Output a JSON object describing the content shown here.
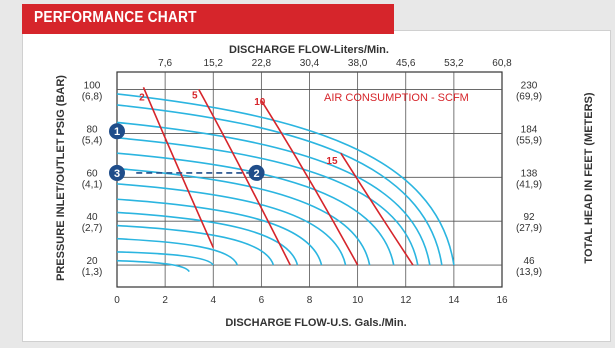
{
  "header": {
    "title": "PERFORMANCE CHART"
  },
  "chart_data": {
    "type": "line",
    "title": "PERFORMANCE CHART",
    "xlabel": "DISCHARGE FLOW-U.S. Gals./Min.",
    "x2label": "DISCHARGE FLOW-Liters/Min.",
    "ylabel": "PRESSURE INLET/OUTLET PSIG (BAR)",
    "y2label": "TOTAL HEAD IN FEET (METERS)",
    "annotation": "AIR CONSUMPTION - SCFM",
    "xlim": [
      0,
      16
    ],
    "ylim": [
      10,
      108
    ],
    "x_ticks": [
      "0",
      "2",
      "4",
      "6",
      "8",
      "10",
      "12",
      "14",
      "16"
    ],
    "x_tick_values": [
      0,
      2,
      4,
      6,
      8,
      10,
      12,
      14,
      16
    ],
    "x2_ticks": [
      "7,6",
      "15,2",
      "22,8",
      "30,4",
      "38,0",
      "45,6",
      "53,2",
      "60,8"
    ],
    "x2_tick_values": [
      2,
      4,
      6,
      8,
      10,
      12,
      14,
      16
    ],
    "y_ticks": [
      {
        "value": 100,
        "psi": "100",
        "bar": "(6,8)",
        "head": "230",
        "meters": "(69,9)"
      },
      {
        "value": 80,
        "psi": "80",
        "bar": "(5,4)",
        "head": "184",
        "meters": "(55,9)"
      },
      {
        "value": 60,
        "psi": "60",
        "bar": "(4,1)",
        "head": "138",
        "meters": "(41,9)"
      },
      {
        "value": 40,
        "psi": "40",
        "bar": "(2,7)",
        "head": "92",
        "meters": "(27,9)"
      },
      {
        "value": 20,
        "psi": "20",
        "bar": "(1,3)",
        "head": "46",
        "meters": "(13,9)"
      }
    ],
    "grid": true,
    "colors": {
      "pressure_curves": "#2bb5e0",
      "air_curves": "#d6252b",
      "marker": "#1f4d8a",
      "dashed": "#1f4d8a"
    },
    "pressure_curves": [
      {
        "y0": 98,
        "end": [
          14.0,
          20
        ]
      },
      {
        "y0": 93,
        "end": [
          13.5,
          20
        ]
      },
      {
        "y0": 85,
        "end": [
          13.0,
          20
        ]
      },
      {
        "y0": 78,
        "end": [
          12.5,
          20
        ]
      },
      {
        "y0": 71,
        "end": [
          11.5,
          20
        ]
      },
      {
        "y0": 64,
        "end": [
          10.5,
          20
        ]
      },
      {
        "y0": 57,
        "end": [
          9.5,
          20
        ]
      },
      {
        "y0": 50,
        "end": [
          8.5,
          20
        ]
      },
      {
        "y0": 44,
        "end": [
          7.5,
          20
        ]
      },
      {
        "y0": 38,
        "end": [
          6.5,
          20
        ]
      },
      {
        "y0": 32,
        "end": [
          5.0,
          20
        ]
      },
      {
        "y0": 26,
        "end": [
          4.0,
          20
        ]
      },
      {
        "y0": 22,
        "end": [
          3.0,
          17
        ]
      }
    ],
    "air_curves": [
      {
        "label": "2",
        "label_at": [
          1.2,
          95
        ],
        "points": [
          [
            1.1,
            101
          ],
          [
            2.3,
            70
          ],
          [
            4.0,
            28
          ]
        ]
      },
      {
        "label": "5",
        "label_at": [
          3.4,
          96
        ],
        "points": [
          [
            3.4,
            100
          ],
          [
            5.0,
            68
          ],
          [
            7.2,
            20
          ]
        ]
      },
      {
        "label": "10",
        "label_at": [
          6.1,
          93
        ],
        "points": [
          [
            6.0,
            95
          ],
          [
            8.0,
            60
          ],
          [
            10.0,
            20
          ]
        ]
      },
      {
        "label": "15",
        "label_at": [
          9.1,
          66
        ],
        "points": [
          [
            9.3,
            71
          ],
          [
            10.8,
            45
          ],
          [
            12.3,
            20
          ]
        ]
      }
    ],
    "dashed_line": {
      "y": 62,
      "x_from": 0.8,
      "x_to": 5.8
    },
    "markers": [
      {
        "label": "1",
        "x": 0,
        "y": 81
      },
      {
        "label": "2",
        "x": 5.8,
        "y": 62
      },
      {
        "label": "3",
        "x": 0,
        "y": 62
      }
    ]
  }
}
